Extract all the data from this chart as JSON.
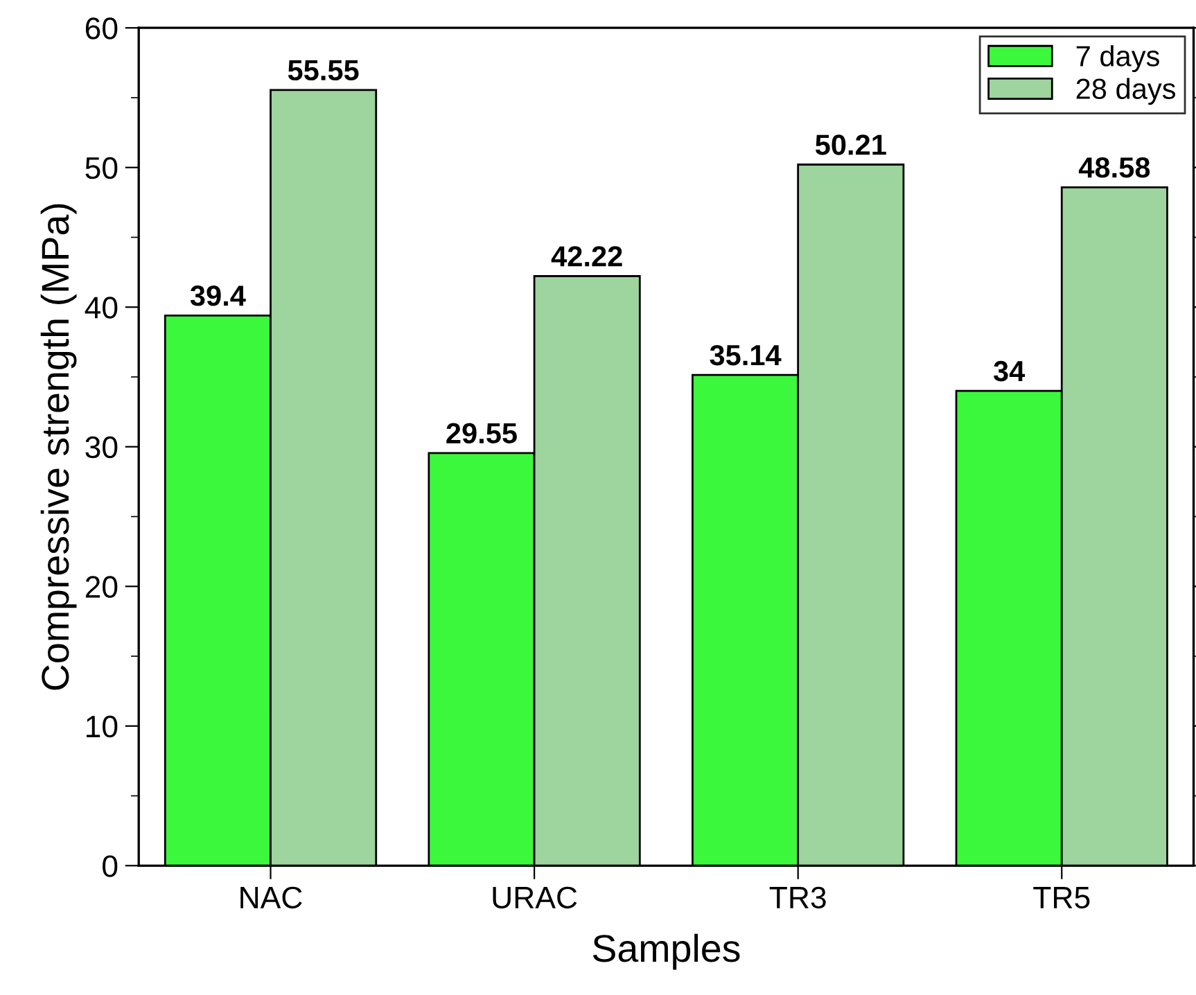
{
  "chart_data": {
    "type": "bar",
    "xlabel": "Samples",
    "ylabel": "Compressive strength (MPa)",
    "categories": [
      "NAC",
      "URAC",
      "TR3",
      "TR5"
    ],
    "series": [
      {
        "name": "7 days",
        "color": "#3cf83c",
        "values": [
          39.4,
          29.55,
          35.14,
          34
        ]
      },
      {
        "name": "28 days",
        "color": "#9ed49e",
        "values": [
          55.55,
          42.22,
          50.21,
          48.58
        ]
      }
    ],
    "ylim": [
      0,
      60
    ],
    "yticks": [
      0,
      10,
      20,
      30,
      40,
      50,
      60
    ],
    "data_labels": true,
    "legend": "top right",
    "grid": false
  }
}
